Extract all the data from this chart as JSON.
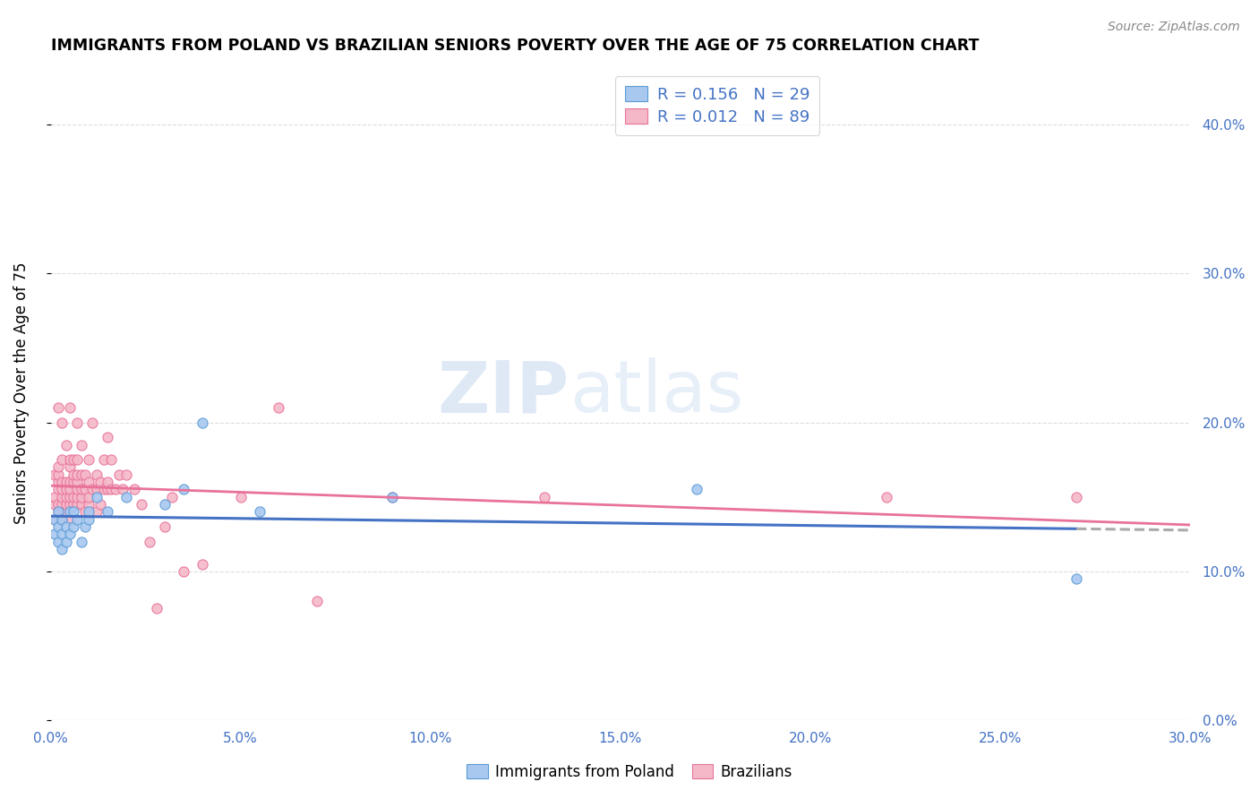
{
  "title": "IMMIGRANTS FROM POLAND VS BRAZILIAN SENIORS POVERTY OVER THE AGE OF 75 CORRELATION CHART",
  "source": "Source: ZipAtlas.com",
  "ylabel": "Seniors Poverty Over the Age of 75",
  "legend_r_poland": "R = 0.156",
  "legend_n_poland": "N = 29",
  "legend_r_brazil": "R = 0.012",
  "legend_n_brazil": "N = 89",
  "legend_label_poland": "Immigrants from Poland",
  "legend_label_brazil": "Brazilians",
  "color_poland_fill": "#A8C8F0",
  "color_poland_edge": "#5B9BD5",
  "color_brazil_fill": "#F4B8C8",
  "color_brazil_edge": "#E8729A",
  "color_text_blue": "#4472C4",
  "color_line_poland": "#4472C4",
  "color_line_brazil": "#E8729A",
  "color_dashed": "#AAAAAA",
  "xlim": [
    0.0,
    0.3
  ],
  "ylim": [
    0.0,
    0.44
  ],
  "x_tick_vals": [
    0.0,
    0.05,
    0.1,
    0.15,
    0.2,
    0.25,
    0.3
  ],
  "x_tick_labels": [
    "0.0%",
    "5.0%",
    "10.0%",
    "15.0%",
    "20.0%",
    "25.0%",
    "30.0%"
  ],
  "y_tick_vals": [
    0.0,
    0.1,
    0.2,
    0.3,
    0.4
  ],
  "y_tick_labels": [
    "0.0%",
    "10.0%",
    "20.0%",
    "30.0%",
    "40.0%"
  ],
  "poland_x": [
    0.001,
    0.001,
    0.002,
    0.002,
    0.002,
    0.003,
    0.003,
    0.003,
    0.004,
    0.004,
    0.005,
    0.005,
    0.006,
    0.006,
    0.007,
    0.008,
    0.009,
    0.01,
    0.01,
    0.012,
    0.015,
    0.02,
    0.03,
    0.035,
    0.04,
    0.055,
    0.09,
    0.17,
    0.27
  ],
  "poland_y": [
    0.125,
    0.135,
    0.12,
    0.13,
    0.14,
    0.115,
    0.125,
    0.135,
    0.12,
    0.13,
    0.125,
    0.14,
    0.13,
    0.14,
    0.135,
    0.12,
    0.13,
    0.135,
    0.14,
    0.15,
    0.14,
    0.15,
    0.145,
    0.155,
    0.2,
    0.14,
    0.15,
    0.155,
    0.095
  ],
  "brazil_x": [
    0.001,
    0.001,
    0.001,
    0.001,
    0.002,
    0.002,
    0.002,
    0.002,
    0.002,
    0.002,
    0.002,
    0.003,
    0.003,
    0.003,
    0.003,
    0.003,
    0.003,
    0.003,
    0.004,
    0.004,
    0.004,
    0.004,
    0.004,
    0.004,
    0.005,
    0.005,
    0.005,
    0.005,
    0.005,
    0.005,
    0.005,
    0.005,
    0.006,
    0.006,
    0.006,
    0.006,
    0.006,
    0.007,
    0.007,
    0.007,
    0.007,
    0.007,
    0.007,
    0.007,
    0.008,
    0.008,
    0.008,
    0.008,
    0.008,
    0.009,
    0.009,
    0.009,
    0.01,
    0.01,
    0.01,
    0.01,
    0.011,
    0.011,
    0.012,
    0.012,
    0.012,
    0.013,
    0.013,
    0.014,
    0.014,
    0.015,
    0.015,
    0.015,
    0.016,
    0.016,
    0.017,
    0.018,
    0.019,
    0.02,
    0.022,
    0.024,
    0.026,
    0.028,
    0.03,
    0.032,
    0.035,
    0.04,
    0.05,
    0.06,
    0.07,
    0.09,
    0.13,
    0.22,
    0.27
  ],
  "brazil_y": [
    0.135,
    0.145,
    0.15,
    0.165,
    0.14,
    0.145,
    0.155,
    0.16,
    0.165,
    0.17,
    0.21,
    0.135,
    0.145,
    0.15,
    0.155,
    0.16,
    0.175,
    0.2,
    0.14,
    0.145,
    0.15,
    0.155,
    0.16,
    0.185,
    0.135,
    0.145,
    0.15,
    0.155,
    0.16,
    0.17,
    0.175,
    0.21,
    0.145,
    0.15,
    0.16,
    0.165,
    0.175,
    0.145,
    0.15,
    0.155,
    0.16,
    0.165,
    0.175,
    0.2,
    0.145,
    0.15,
    0.155,
    0.165,
    0.185,
    0.14,
    0.155,
    0.165,
    0.145,
    0.15,
    0.16,
    0.175,
    0.155,
    0.2,
    0.14,
    0.155,
    0.165,
    0.145,
    0.16,
    0.155,
    0.175,
    0.155,
    0.16,
    0.19,
    0.155,
    0.175,
    0.155,
    0.165,
    0.155,
    0.165,
    0.155,
    0.145,
    0.12,
    0.075,
    0.13,
    0.15,
    0.1,
    0.105,
    0.15,
    0.21,
    0.08,
    0.15,
    0.15,
    0.15,
    0.15
  ],
  "watermark_zip": "ZIP",
  "watermark_atlas": "atlas",
  "background_color": "#FFFFFF",
  "grid_color": "#DDDDDD",
  "marker_size": 65
}
